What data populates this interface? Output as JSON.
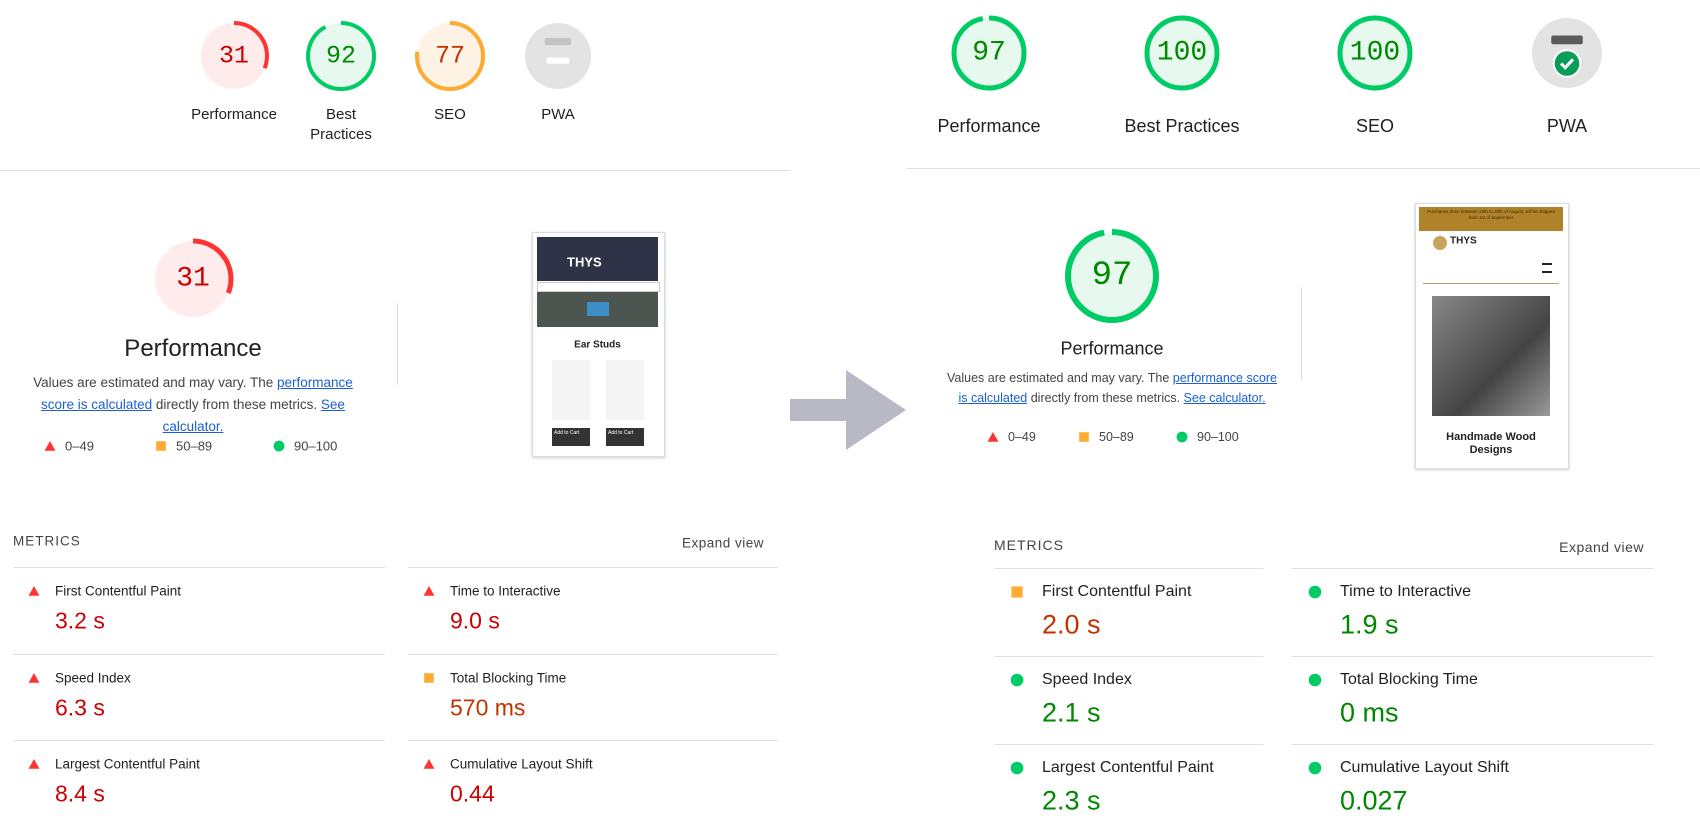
{
  "reports": [
    {
      "gauges": [
        {
          "score": 31,
          "label": "Performance",
          "rating": "fail"
        },
        {
          "score": 92,
          "label": "Best Practices",
          "rating": "pass"
        },
        {
          "score": 77,
          "label": "SEO",
          "rating": "average"
        },
        {
          "label": "PWA",
          "rating": "pwa",
          "pwa_status": "none"
        }
      ],
      "performance": {
        "score": 31,
        "rating": "fail",
        "title": "Performance",
        "description": {
          "text1": "Values are estimated and may vary. The ",
          "link1": "performance score is calculated",
          "text2": " directly from these metrics. ",
          "link2": "See calculator."
        }
      },
      "legend": [
        "0–49",
        "50–89",
        "90–100"
      ],
      "thumbnail": {
        "style": "dark",
        "brand": "THYS",
        "heading": "Ear Studs",
        "button": "Add to Cart"
      },
      "metrics_header": "METRICS",
      "expand": "Expand view",
      "metrics": [
        {
          "label": "First Contentful Paint",
          "value": "3.2 s",
          "rating": "fail"
        },
        {
          "label": "Time to Interactive",
          "value": "9.0 s",
          "rating": "fail"
        },
        {
          "label": "Speed Index",
          "value": "6.3 s",
          "rating": "fail"
        },
        {
          "label": "Total Blocking Time",
          "value": "570 ms",
          "rating": "average"
        },
        {
          "label": "Largest Contentful Paint",
          "value": "8.4 s",
          "rating": "fail"
        },
        {
          "label": "Cumulative Layout Shift",
          "value": "0.44",
          "rating": "fail"
        }
      ]
    },
    {
      "gauges": [
        {
          "score": 97,
          "label": "Performance",
          "rating": "pass"
        },
        {
          "score": 100,
          "label": "Best Practices",
          "rating": "pass"
        },
        {
          "score": 100,
          "label": "SEO",
          "rating": "pass"
        },
        {
          "label": "PWA",
          "rating": "pwa",
          "pwa_status": "pass"
        }
      ],
      "performance": {
        "score": 97,
        "rating": "pass",
        "title": "Performance",
        "description": {
          "text1": "Values are estimated and may vary. The ",
          "link1": "performance score is calculated",
          "text2": " directly from these metrics. ",
          "link2": "See calculator."
        }
      },
      "legend": [
        "0–49",
        "50–89",
        "90–100"
      ],
      "thumbnail": {
        "style": "light",
        "banner": "Purchases done between 25th to 30th of August, will be shipped from 1st of September",
        "brand": "THYS",
        "heading": "Handmade Wood Designs"
      },
      "metrics_header": "METRICS",
      "expand": "Expand view",
      "metrics": [
        {
          "label": "First Contentful Paint",
          "value": "2.0 s",
          "rating": "average"
        },
        {
          "label": "Time to Interactive",
          "value": "1.9 s",
          "rating": "pass"
        },
        {
          "label": "Speed Index",
          "value": "2.1 s",
          "rating": "pass"
        },
        {
          "label": "Total Blocking Time",
          "value": "0 ms",
          "rating": "pass"
        },
        {
          "label": "Largest Contentful Paint",
          "value": "2.3 s",
          "rating": "pass"
        },
        {
          "label": "Cumulative Layout Shift",
          "value": "0.027",
          "rating": "pass"
        }
      ]
    }
  ]
}
